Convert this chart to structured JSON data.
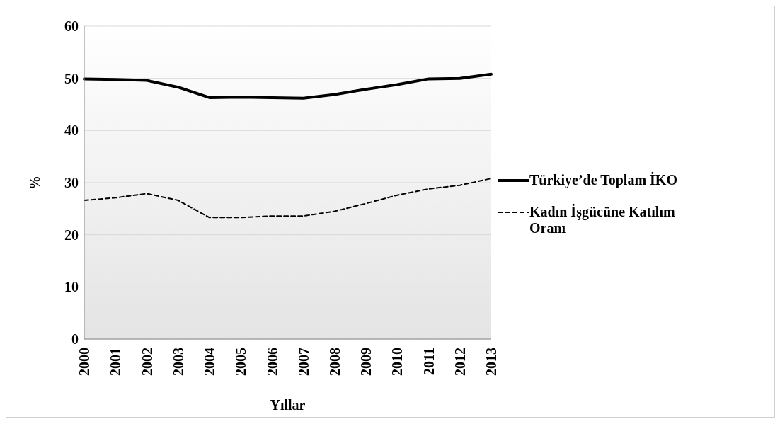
{
  "chart_data": {
    "type": "line",
    "xlabel": "Yıllar",
    "ylabel": "%",
    "categories": [
      "2000",
      "2001",
      "2002",
      "2003",
      "2004",
      "2005",
      "2006",
      "2007",
      "2008",
      "2009",
      "2010",
      "2011",
      "2012",
      "2013"
    ],
    "series": [
      {
        "name": "Türkiye’de Toplam İKO",
        "color": "#000000",
        "line_style": "solid",
        "values": [
          49.9,
          49.8,
          49.6,
          48.3,
          46.3,
          46.4,
          46.3,
          46.2,
          46.9,
          47.9,
          48.8,
          49.9,
          50.0,
          50.8
        ]
      },
      {
        "name": "Kadın İşgücüne Katılım Oranı",
        "color": "#000000",
        "line_style": "dashed",
        "values": [
          26.6,
          27.1,
          27.9,
          26.6,
          23.3,
          23.3,
          23.6,
          23.6,
          24.5,
          26.0,
          27.6,
          28.8,
          29.5,
          30.8
        ]
      }
    ],
    "ylim": [
      0,
      60
    ],
    "yticks": [
      0,
      10,
      20,
      30,
      40,
      50,
      60
    ],
    "grid": "y",
    "legend": "right",
    "marker": "none"
  }
}
